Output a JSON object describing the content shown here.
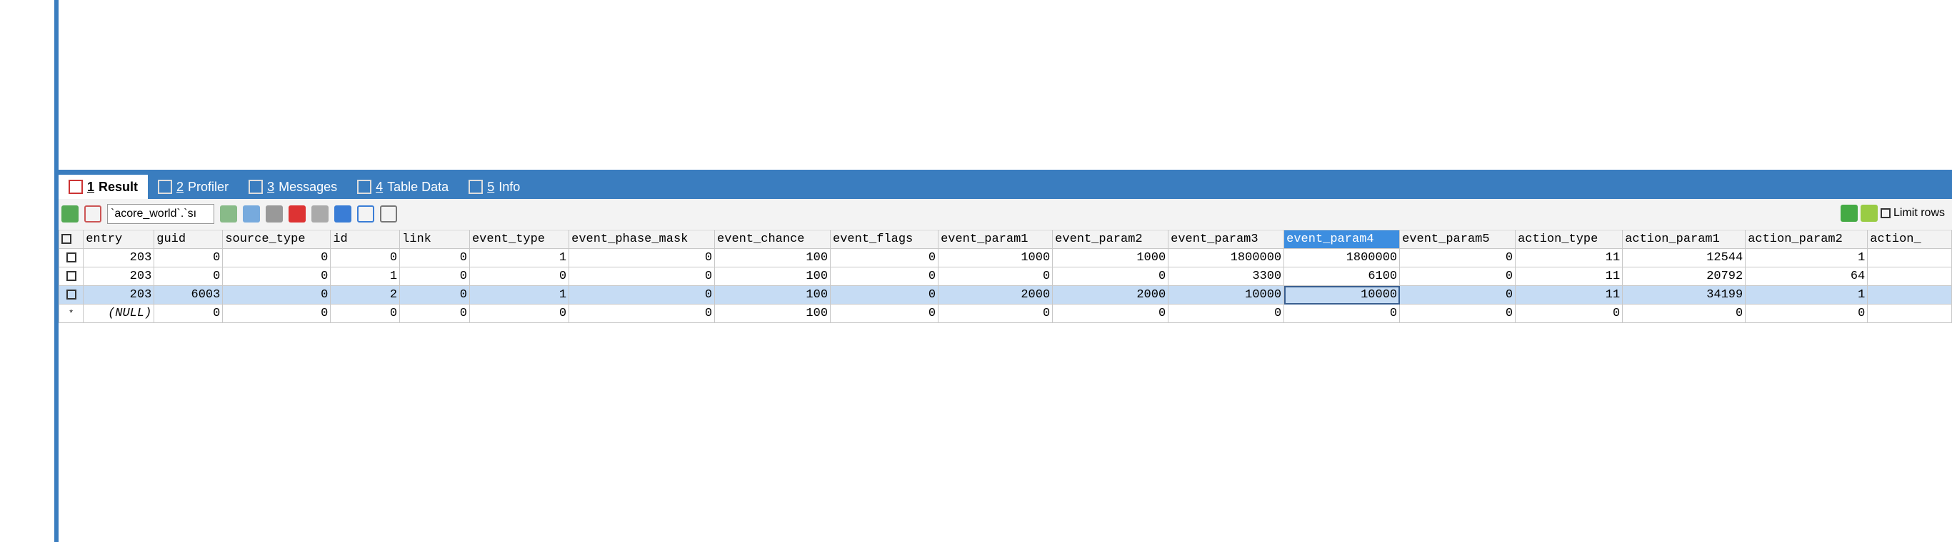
{
  "tabs": [
    {
      "number": "1",
      "label": "Result"
    },
    {
      "number": "2",
      "label": "Profiler"
    },
    {
      "number": "3",
      "label": "Messages"
    },
    {
      "number": "4",
      "label": "Table Data"
    },
    {
      "number": "5",
      "label": "Info"
    }
  ],
  "toolbar": {
    "table_select": "`acore_world`.`sı",
    "limit_rows": "Limit rows"
  },
  "table": {
    "columns": [
      "entry",
      "guid",
      "source_type",
      "id",
      "link",
      "event_type",
      "event_phase_mask",
      "event_chance",
      "event_flags",
      "event_param1",
      "event_param2",
      "event_param3",
      "event_param4",
      "event_param5",
      "action_type",
      "action_param1",
      "action_param2",
      "action_"
    ],
    "rows": [
      [
        203,
        0,
        0,
        0,
        0,
        1,
        0,
        100,
        0,
        1000,
        1000,
        1800000,
        1800000,
        0,
        11,
        12544,
        1
      ],
      [
        203,
        0,
        0,
        1,
        0,
        0,
        0,
        100,
        0,
        0,
        0,
        3300,
        6100,
        0,
        11,
        20792,
        64
      ],
      [
        203,
        6003,
        0,
        2,
        0,
        1,
        0,
        100,
        0,
        2000,
        2000,
        10000,
        10000,
        0,
        11,
        34199,
        1
      ],
      [
        {
          "marker": "*",
          "value": "(NULL)"
        },
        0,
        0,
        0,
        0,
        0,
        0,
        100,
        0,
        0,
        0,
        0,
        0,
        0,
        0,
        0,
        0
      ]
    ]
  }
}
